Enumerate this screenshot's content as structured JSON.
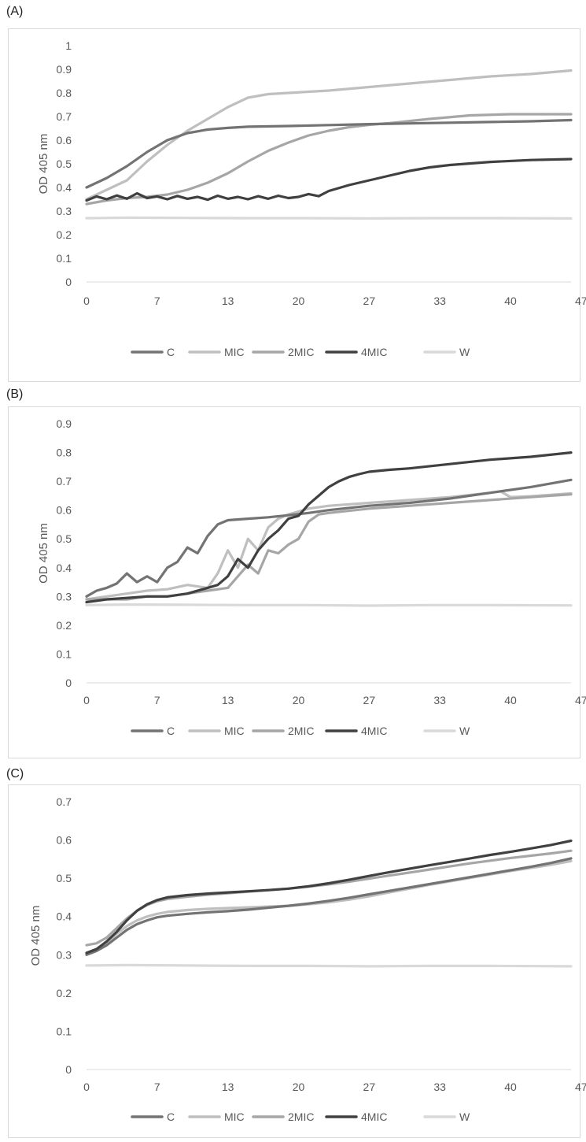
{
  "chart_data": [
    {
      "panel_label": "(A)",
      "type": "line",
      "ylabel": "OD 405 nm",
      "xlabel": "",
      "ylim": [
        0,
        1
      ],
      "yticks": [
        "0",
        "0.1",
        "0.2",
        "0.3",
        "0.4",
        "0.5",
        "0.6",
        "0.7",
        "0.8",
        "0.9",
        "1"
      ],
      "xlim": [
        0,
        48
      ],
      "xticks": [
        "0",
        "7",
        "13",
        "20",
        "27",
        "33",
        "40",
        "47"
      ],
      "grid": false,
      "legend_position": "bottom",
      "series": [
        {
          "name": "C",
          "color": "#737373",
          "x": [
            0,
            2,
            4,
            6,
            8,
            10,
            12,
            14,
            16,
            20,
            24,
            28,
            32,
            36,
            40,
            44,
            48
          ],
          "y": [
            0.4,
            0.44,
            0.49,
            0.55,
            0.6,
            0.63,
            0.645,
            0.652,
            0.657,
            0.66,
            0.664,
            0.668,
            0.671,
            0.674,
            0.677,
            0.68,
            0.685
          ]
        },
        {
          "name": "MIC",
          "color": "#BFBFBF",
          "x": [
            0,
            2,
            4,
            6,
            8,
            10,
            12,
            14,
            16,
            18,
            20,
            24,
            28,
            32,
            36,
            40,
            44,
            48
          ],
          "y": [
            0.35,
            0.39,
            0.43,
            0.51,
            0.58,
            0.64,
            0.69,
            0.74,
            0.78,
            0.795,
            0.8,
            0.81,
            0.825,
            0.84,
            0.855,
            0.87,
            0.88,
            0.895
          ]
        },
        {
          "name": "2MIC",
          "color": "#A6A6A6",
          "x": [
            0,
            2,
            4,
            6,
            8,
            10,
            12,
            14,
            16,
            18,
            20,
            22,
            24,
            26,
            28,
            30,
            34,
            38,
            42,
            48
          ],
          "y": [
            0.33,
            0.345,
            0.355,
            0.36,
            0.37,
            0.39,
            0.42,
            0.46,
            0.51,
            0.555,
            0.59,
            0.62,
            0.64,
            0.655,
            0.665,
            0.672,
            0.69,
            0.705,
            0.71,
            0.71
          ]
        },
        {
          "name": "4MIC",
          "color": "#404040",
          "x": [
            0,
            1,
            2,
            3,
            4,
            5,
            6,
            7,
            8,
            9,
            10,
            11,
            12,
            13,
            14,
            15,
            16,
            17,
            18,
            19,
            20,
            21,
            22,
            23,
            24,
            26,
            28,
            30,
            32,
            34,
            36,
            40,
            44,
            48
          ],
          "y": [
            0.345,
            0.362,
            0.35,
            0.366,
            0.352,
            0.375,
            0.355,
            0.362,
            0.35,
            0.364,
            0.352,
            0.36,
            0.348,
            0.365,
            0.352,
            0.36,
            0.35,
            0.363,
            0.352,
            0.365,
            0.355,
            0.36,
            0.372,
            0.363,
            0.385,
            0.41,
            0.43,
            0.45,
            0.47,
            0.485,
            0.495,
            0.508,
            0.516,
            0.52
          ]
        },
        {
          "name": "W",
          "color": "#D9D9D9",
          "x": [
            0,
            4,
            10,
            16,
            22,
            28,
            34,
            40,
            48
          ],
          "y": [
            0.27,
            0.272,
            0.271,
            0.27,
            0.27,
            0.269,
            0.27,
            0.27,
            0.269
          ]
        }
      ]
    },
    {
      "panel_label": "(B)",
      "type": "line",
      "ylabel": "OD 405 nm",
      "xlabel": "",
      "ylim": [
        0,
        0.9
      ],
      "yticks": [
        "0",
        "0.1",
        "0.2",
        "0.3",
        "0.4",
        "0.5",
        "0.6",
        "0.7",
        "0.8",
        "0.9"
      ],
      "xlim": [
        0,
        48
      ],
      "xticks": [
        "0",
        "7",
        "13",
        "20",
        "27",
        "33",
        "40",
        "47"
      ],
      "grid": false,
      "legend_position": "bottom",
      "series": [
        {
          "name": "C",
          "color": "#737373",
          "x": [
            0,
            1,
            2,
            3,
            4,
            5,
            6,
            7,
            8,
            9,
            10,
            11,
            12,
            13,
            14,
            16,
            18,
            20,
            22,
            24,
            28,
            32,
            36,
            40,
            44,
            48
          ],
          "y": [
            0.3,
            0.32,
            0.33,
            0.345,
            0.38,
            0.35,
            0.37,
            0.35,
            0.4,
            0.42,
            0.47,
            0.45,
            0.51,
            0.55,
            0.565,
            0.57,
            0.575,
            0.582,
            0.59,
            0.6,
            0.615,
            0.625,
            0.64,
            0.66,
            0.68,
            0.705
          ]
        },
        {
          "name": "MIC",
          "color": "#BFBFBF",
          "x": [
            0,
            2,
            4,
            6,
            8,
            10,
            12,
            13,
            14,
            15,
            16,
            17,
            18,
            19,
            20,
            22,
            24,
            28,
            32,
            36,
            40,
            41,
            42,
            44,
            48
          ],
          "y": [
            0.29,
            0.3,
            0.31,
            0.32,
            0.325,
            0.34,
            0.33,
            0.38,
            0.46,
            0.4,
            0.5,
            0.46,
            0.54,
            0.57,
            0.585,
            0.605,
            0.615,
            0.625,
            0.635,
            0.645,
            0.66,
            0.665,
            0.645,
            0.648,
            0.658
          ]
        },
        {
          "name": "2MIC",
          "color": "#A6A6A6",
          "x": [
            0,
            2,
            4,
            6,
            8,
            10,
            12,
            14,
            15,
            16,
            17,
            18,
            19,
            20,
            21,
            22,
            23,
            24,
            28,
            32,
            36,
            40,
            44,
            48
          ],
          "y": [
            0.29,
            0.29,
            0.29,
            0.3,
            0.3,
            0.31,
            0.32,
            0.33,
            0.37,
            0.41,
            0.38,
            0.46,
            0.45,
            0.48,
            0.5,
            0.56,
            0.585,
            0.59,
            0.605,
            0.615,
            0.625,
            0.635,
            0.645,
            0.655
          ]
        },
        {
          "name": "4MIC",
          "color": "#404040",
          "x": [
            0,
            2,
            4,
            6,
            8,
            10,
            12,
            13,
            14,
            15,
            16,
            17,
            18,
            19,
            20,
            21,
            22,
            23,
            24,
            25,
            26,
            27,
            28,
            30,
            32,
            36,
            40,
            44,
            48
          ],
          "y": [
            0.28,
            0.29,
            0.295,
            0.3,
            0.3,
            0.31,
            0.33,
            0.34,
            0.37,
            0.43,
            0.4,
            0.46,
            0.5,
            0.53,
            0.57,
            0.58,
            0.62,
            0.65,
            0.68,
            0.7,
            0.715,
            0.725,
            0.733,
            0.74,
            0.745,
            0.76,
            0.775,
            0.785,
            0.8
          ]
        },
        {
          "name": "W",
          "color": "#D9D9D9",
          "x": [
            0,
            4,
            10,
            16,
            22,
            28,
            34,
            40,
            48
          ],
          "y": [
            0.27,
            0.272,
            0.271,
            0.27,
            0.27,
            0.268,
            0.27,
            0.27,
            0.269
          ]
        }
      ]
    },
    {
      "panel_label": "(C)",
      "type": "line",
      "ylabel": "OD 405 nm",
      "xlabel": "",
      "ylim": [
        0,
        0.7
      ],
      "yticks": [
        "0",
        "0.1",
        "0.2",
        "0.3",
        "0.4",
        "0.5",
        "0.6",
        "0.7"
      ],
      "xlim": [
        0,
        48
      ],
      "xticks": [
        "0",
        "7",
        "13",
        "20",
        "27",
        "33",
        "40",
        "47"
      ],
      "grid": false,
      "legend_position": "bottom",
      "series": [
        {
          "name": "C",
          "color": "#737373",
          "x": [
            0,
            1,
            2,
            3,
            4,
            5,
            6,
            7,
            8,
            10,
            12,
            14,
            16,
            18,
            20,
            22,
            24,
            26,
            28,
            30,
            32,
            34,
            36,
            38,
            40,
            42,
            44,
            46,
            48
          ],
          "y": [
            0.3,
            0.31,
            0.325,
            0.345,
            0.365,
            0.38,
            0.39,
            0.398,
            0.402,
            0.407,
            0.411,
            0.414,
            0.418,
            0.423,
            0.428,
            0.434,
            0.441,
            0.449,
            0.458,
            0.467,
            0.476,
            0.485,
            0.494,
            0.503,
            0.512,
            0.521,
            0.53,
            0.54,
            0.552
          ]
        },
        {
          "name": "MIC",
          "color": "#BFBFBF",
          "x": [
            0,
            1,
            2,
            3,
            4,
            5,
            6,
            7,
            8,
            10,
            12,
            14,
            16,
            18,
            20,
            22,
            24,
            26,
            28,
            30,
            32,
            34,
            36,
            38,
            40,
            42,
            44,
            46,
            48
          ],
          "y": [
            0.3,
            0.31,
            0.33,
            0.355,
            0.375,
            0.39,
            0.4,
            0.407,
            0.412,
            0.417,
            0.42,
            0.422,
            0.424,
            0.426,
            0.428,
            0.432,
            0.437,
            0.444,
            0.453,
            0.463,
            0.473,
            0.483,
            0.492,
            0.501,
            0.51,
            0.519,
            0.527,
            0.535,
            0.545
          ]
        },
        {
          "name": "2MIC",
          "color": "#A6A6A6",
          "x": [
            0,
            1,
            2,
            3,
            4,
            5,
            6,
            7,
            8,
            10,
            12,
            14,
            16,
            18,
            20,
            22,
            24,
            26,
            28,
            30,
            32,
            34,
            36,
            38,
            40,
            42,
            44,
            46,
            48
          ],
          "y": [
            0.325,
            0.33,
            0.345,
            0.37,
            0.395,
            0.415,
            0.43,
            0.44,
            0.446,
            0.452,
            0.457,
            0.461,
            0.465,
            0.469,
            0.473,
            0.478,
            0.484,
            0.491,
            0.499,
            0.507,
            0.515,
            0.523,
            0.531,
            0.539,
            0.546,
            0.553,
            0.559,
            0.565,
            0.572
          ]
        },
        {
          "name": "4MIC",
          "color": "#404040",
          "x": [
            0,
            1,
            2,
            3,
            4,
            5,
            6,
            7,
            8,
            10,
            12,
            14,
            16,
            18,
            20,
            22,
            24,
            26,
            28,
            30,
            32,
            34,
            36,
            38,
            40,
            42,
            44,
            46,
            48
          ],
          "y": [
            0.305,
            0.315,
            0.335,
            0.36,
            0.39,
            0.415,
            0.432,
            0.443,
            0.45,
            0.456,
            0.46,
            0.463,
            0.466,
            0.469,
            0.473,
            0.479,
            0.487,
            0.496,
            0.506,
            0.516,
            0.525,
            0.534,
            0.543,
            0.552,
            0.561,
            0.569,
            0.578,
            0.587,
            0.598
          ]
        },
        {
          "name": "W",
          "color": "#D9D9D9",
          "x": [
            0,
            4,
            10,
            16,
            22,
            28,
            34,
            40,
            48
          ],
          "y": [
            0.272,
            0.273,
            0.272,
            0.271,
            0.271,
            0.27,
            0.271,
            0.271,
            0.27
          ]
        }
      ]
    }
  ]
}
